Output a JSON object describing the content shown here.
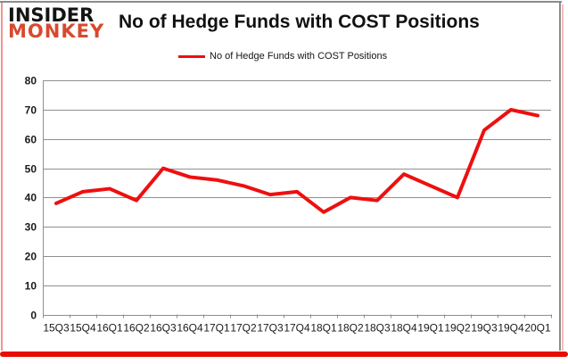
{
  "brand": {
    "line1": "INSIDER",
    "line2": "MONKEY",
    "monkey_color": "#d7492e"
  },
  "header": {
    "title": "No of Hedge Funds with COST Positions"
  },
  "legend": {
    "label": "No of Hedge Funds with COST Positions"
  },
  "chart_data": {
    "type": "line",
    "title": "No of Hedge Funds with COST Positions",
    "categories": [
      "15Q3",
      "15Q4",
      "16Q1",
      "16Q2",
      "16Q3",
      "16Q4",
      "17Q1",
      "17Q2",
      "17Q3",
      "17Q4",
      "18Q1",
      "18Q2",
      "18Q3",
      "18Q4",
      "19Q1",
      "19Q2",
      "19Q3",
      "19Q4",
      "20Q1"
    ],
    "series": [
      {
        "name": "No of Hedge Funds with COST Positions",
        "values": [
          38,
          42,
          43,
          39,
          50,
          47,
          46,
          44,
          41,
          42,
          35,
          40,
          39,
          48,
          44,
          40,
          63,
          70,
          68
        ]
      }
    ],
    "xlabel": "",
    "ylabel": "",
    "ylim": [
      0,
      80
    ],
    "ytick_step": 10,
    "grid": true,
    "legend_position": "top",
    "line_color": "#ee0f0f",
    "grid_color": "#8f8f8f",
    "tick_label_color": "#1a1a1a"
  },
  "frame": {
    "bottom_bar_color": "#e60d00",
    "border_color": "#8b8b8b",
    "side_glow_color": "#f0948d"
  }
}
